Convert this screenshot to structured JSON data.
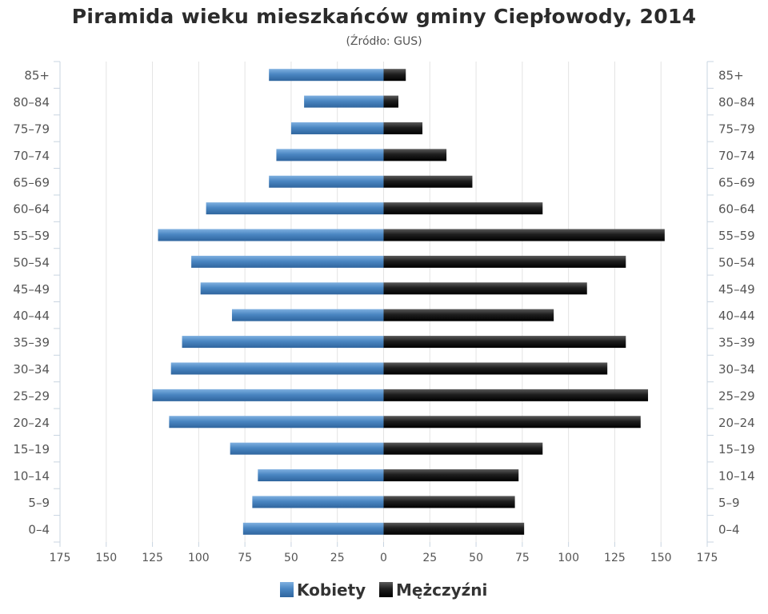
{
  "chart_data": {
    "type": "bar",
    "orientation": "horizontal-pyramid",
    "title": "Piramida wieku mieszkańców gminy Ciepłowody, 2014",
    "subtitle": "(Źródło: GUS)",
    "categories": [
      "0–4",
      "5–9",
      "10–14",
      "15–19",
      "20–24",
      "25–29",
      "30–34",
      "35–39",
      "40–44",
      "45–49",
      "50–54",
      "55–59",
      "60–64",
      "65–69",
      "70–74",
      "75–79",
      "80–84",
      "85+"
    ],
    "series": [
      {
        "name": "Kobiety",
        "color": "#4a86c2",
        "side": "left",
        "values": [
          76,
          71,
          68,
          83,
          116,
          125,
          115,
          109,
          82,
          99,
          104,
          122,
          96,
          62,
          58,
          50,
          43,
          62
        ]
      },
      {
        "name": "Mężczyźni",
        "color": "#1e1e1e",
        "side": "right",
        "values": [
          76,
          71,
          73,
          86,
          139,
          143,
          121,
          131,
          92,
          110,
          131,
          152,
          86,
          48,
          34,
          21,
          8,
          12
        ]
      }
    ],
    "xlim": [
      -175,
      175
    ],
    "x_ticks": [
      -175,
      -150,
      -125,
      -100,
      -75,
      -50,
      -25,
      0,
      25,
      50,
      75,
      100,
      125,
      150,
      175
    ],
    "x_tick_labels": [
      "175",
      "150",
      "125",
      "100",
      "75",
      "50",
      "25",
      "0",
      "25",
      "50",
      "75",
      "100",
      "125",
      "150",
      "175"
    ],
    "grid": true,
    "legend": "bottom-center",
    "xlabel": "",
    "ylabel": ""
  }
}
